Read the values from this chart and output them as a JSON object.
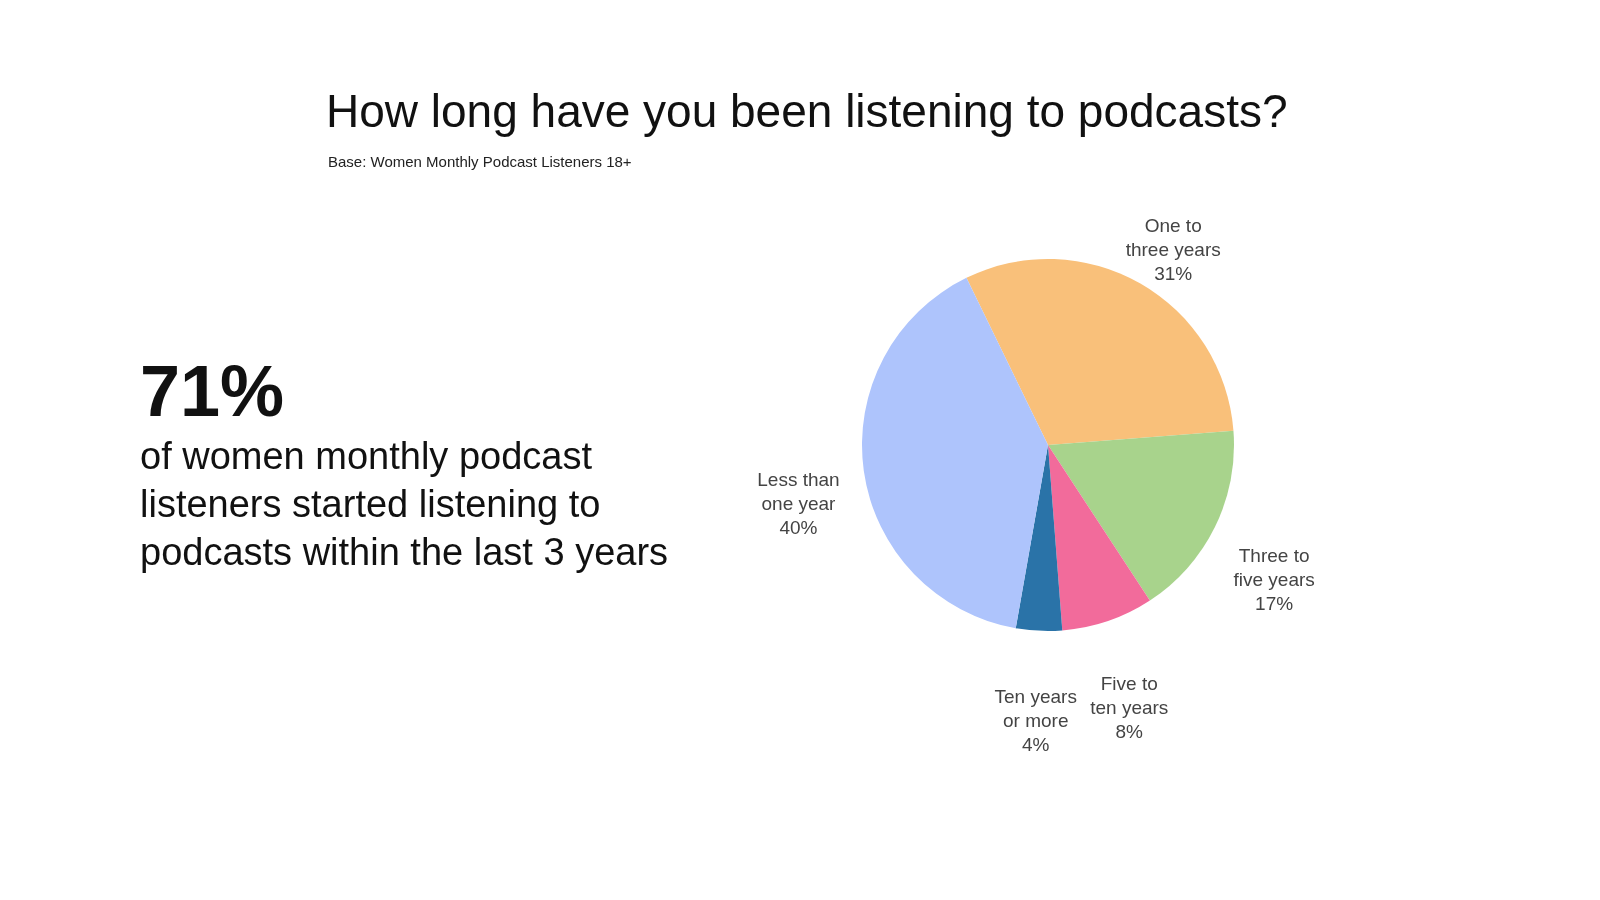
{
  "chart_data": {
    "type": "pie",
    "title": "How long have you been listening to podcasts?",
    "subtitle": "Base: Women Monthly Podcast Listeners 18+",
    "categories": [
      "One to three years",
      "Three to five years",
      "Five to ten years",
      "Ten years or more",
      "Less than one year"
    ],
    "values": [
      31,
      17,
      8,
      4,
      40
    ],
    "colors": [
      "#f9c07a",
      "#a8d38c",
      "#f26b9b",
      "#2a73a8",
      "#aec4fc"
    ],
    "value_labels": [
      "31%",
      "17%",
      "8%",
      "4%",
      "40%"
    ],
    "annotations": [
      "71%",
      "of women monthly podcast listeners started listening to podcasts within the last 3 years"
    ],
    "legend": false
  }
}
